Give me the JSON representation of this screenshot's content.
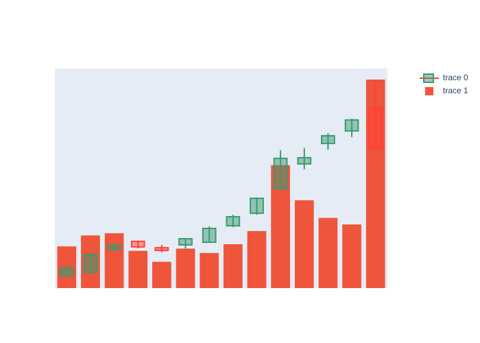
{
  "chart_data": {
    "type": "candlestick",
    "categories": [
      null,
      null,
      null,
      null,
      null,
      null,
      null,
      null,
      null,
      null,
      null,
      null,
      null,
      null
    ],
    "ylim": [
      0,
      100
    ],
    "series": [
      {
        "name": "trace 0",
        "type": "candlestick",
        "increasing_color": "#3D9970",
        "decreasing_color": "#FF4136",
        "open": [
          5.6,
          7.2,
          17.8,
          21.3,
          18.4,
          19.7,
          20.9,
          28.4,
          34.1,
          45.3,
          56.6,
          65.9,
          71.6,
          82.2
        ],
        "high": [
          10,
          15.9,
          20.6,
          21.6,
          19.7,
          22.8,
          28.1,
          33.4,
          41.3,
          62.8,
          63.8,
          70.6,
          77.2,
          95
        ],
        "low": [
          5.3,
          6.9,
          16.3,
          18.1,
          16.3,
          18.1,
          20.9,
          27.8,
          33.4,
          45,
          54.1,
          63.1,
          68.8,
          63.8
        ],
        "close": [
          9.1,
          15.3,
          19.4,
          18.8,
          17.2,
          22.5,
          27.2,
          32.5,
          40.9,
          59.1,
          59.4,
          69.4,
          76.6,
          63.8
        ]
      },
      {
        "name": "trace 1",
        "type": "bar",
        "color": "#EF553B",
        "values": [
          19,
          24,
          25,
          17,
          12,
          18,
          16,
          20,
          26,
          56,
          40,
          32,
          29,
          95
        ]
      }
    ]
  }
}
